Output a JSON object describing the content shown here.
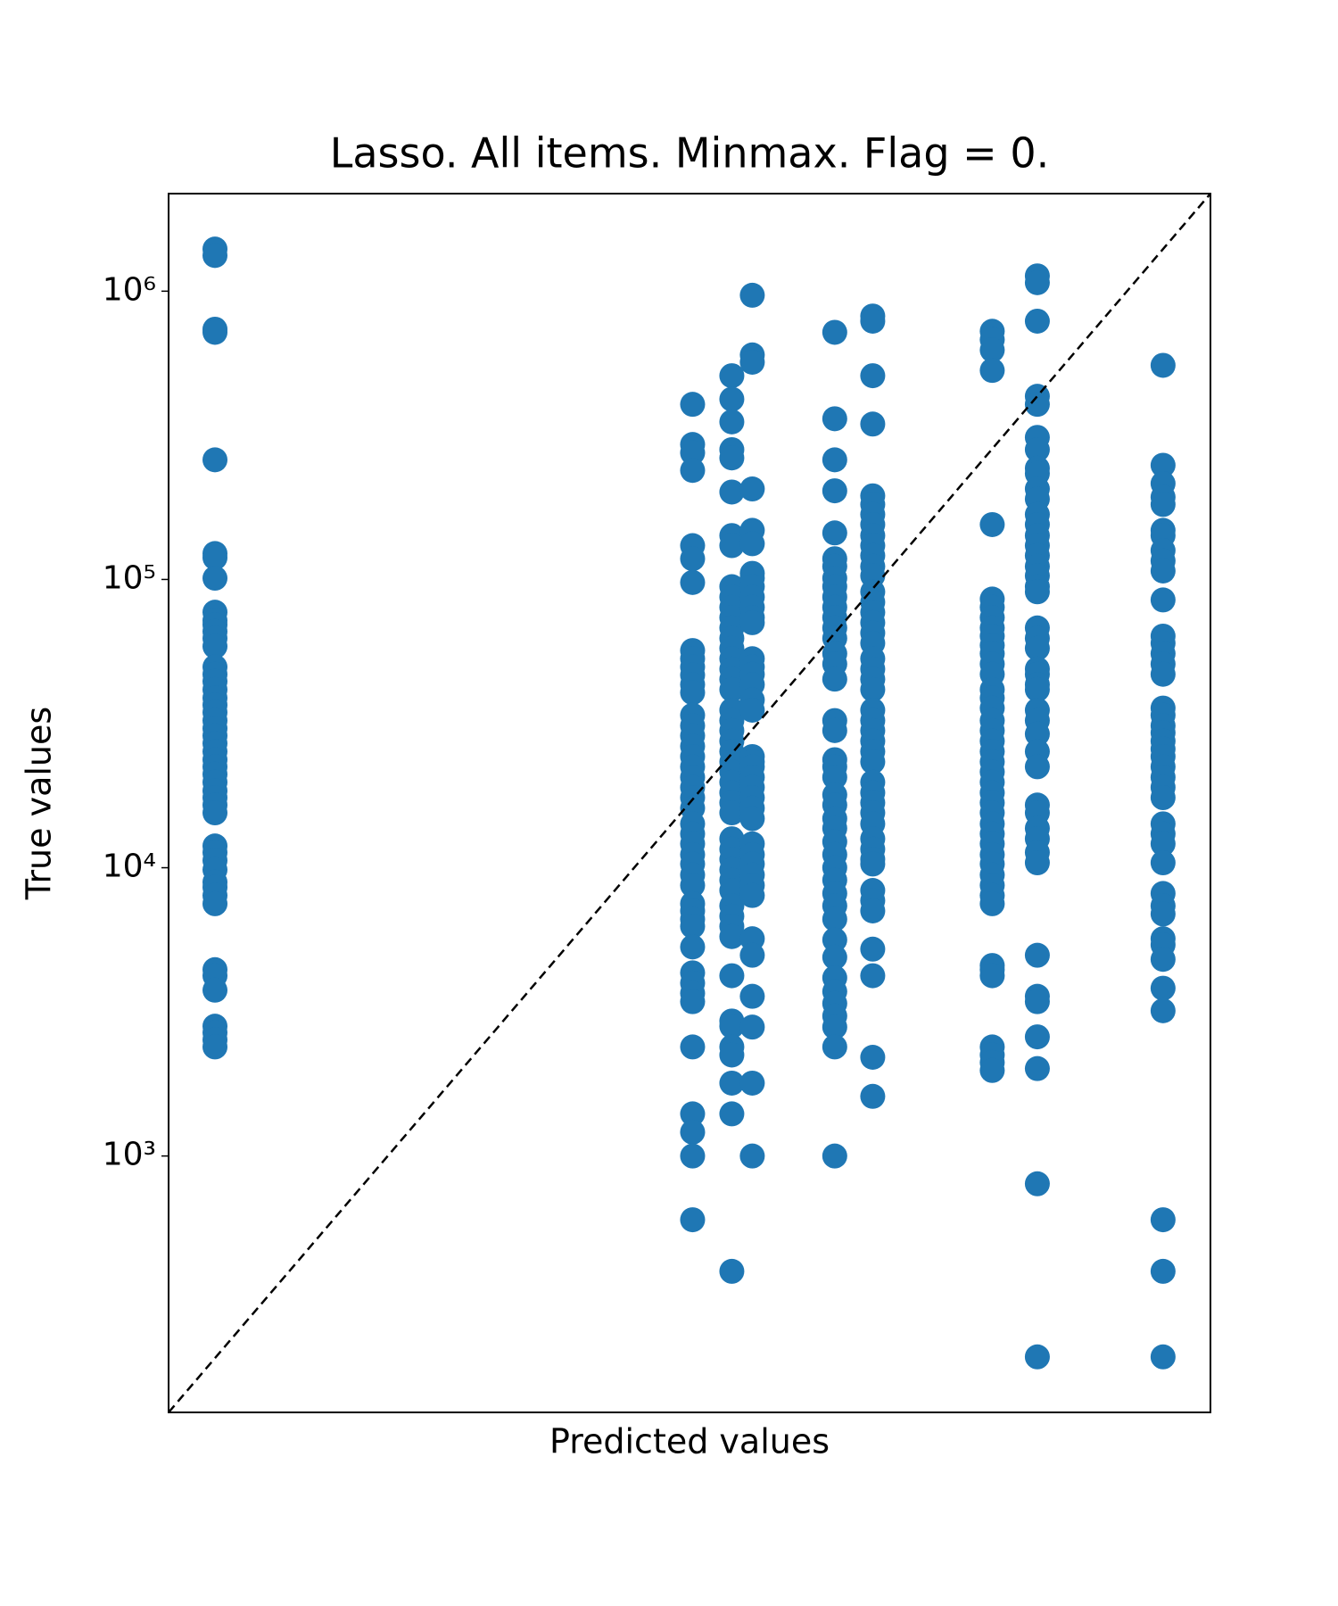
{
  "chart_data": {
    "type": "scatter",
    "title": "Lasso. All items. Minmax. Flag = 0.",
    "x_label": "Predicted values",
    "y_label": "True values",
    "color": "#1f77b4",
    "x_log": true,
    "y_log": true,
    "identity_line": true,
    "xlim": [
      129,
      2180000
    ],
    "ylim": [
      129,
      2180000
    ],
    "yticks": [
      {
        "value": 1000,
        "label": "10³"
      },
      {
        "value": 10000,
        "label": "10⁴"
      },
      {
        "value": 100000,
        "label": "10⁵"
      },
      {
        "value": 1000000,
        "label": "10⁶"
      }
    ],
    "x": [
      199,
      199,
      199,
      199,
      199,
      199,
      199,
      199,
      199,
      199,
      199,
      199,
      199,
      199,
      199,
      199,
      199,
      199,
      199,
      199,
      199,
      199,
      199,
      199,
      199,
      199,
      199,
      199,
      199,
      199,
      199,
      199,
      199,
      199,
      199,
      199,
      199,
      199,
      199,
      199,
      199,
      199,
      199,
      199,
      199,
      199,
      199,
      199,
      199,
      17260,
      17260,
      17260,
      17260,
      17260,
      17260,
      17260,
      17260,
      17260,
      17260,
      17260,
      17260,
      17260,
      17260,
      17260,
      17260,
      17260,
      17260,
      17260,
      17260,
      17260,
      17260,
      17260,
      17260,
      17260,
      17260,
      17260,
      17260,
      17260,
      17260,
      17260,
      17260,
      17260,
      17260,
      17260,
      17260,
      17260,
      17260,
      17260,
      17260,
      17260,
      17260,
      17260,
      17260,
      24900,
      24900,
      24900,
      24900,
      24900,
      24900,
      24900,
      24900,
      24900,
      24900,
      24900,
      24900,
      24900,
      24900,
      24900,
      24900,
      24900,
      24900,
      24900,
      24900,
      24900,
      24900,
      24900,
      24900,
      24900,
      24900,
      24900,
      24900,
      24900,
      24900,
      24900,
      24900,
      24900,
      24900,
      24900,
      24900,
      24900,
      24900,
      24900,
      24900,
      24900,
      24900,
      24900,
      24900,
      24900,
      24900,
      24900,
      24900,
      30150,
      30150,
      30150,
      30150,
      30150,
      30150,
      30150,
      30150,
      30150,
      30150,
      30150,
      30150,
      30150,
      30150,
      30150,
      30150,
      30150,
      30150,
      30150,
      30150,
      30150,
      30150,
      30150,
      30150,
      30150,
      30150,
      30150,
      30150,
      30150,
      30150,
      30150,
      30150,
      30150,
      30150,
      30150,
      30150,
      30150,
      30150,
      30150,
      65150,
      65150,
      65150,
      65150,
      65150,
      65150,
      65150,
      65150,
      65150,
      65150,
      65150,
      65150,
      65150,
      65150,
      65150,
      65150,
      65150,
      65150,
      65150,
      65150,
      65150,
      65150,
      65150,
      65150,
      65150,
      65150,
      65150,
      65150,
      65150,
      65150,
      65150,
      65150,
      65150,
      65150,
      65150,
      65150,
      65150,
      65150,
      65150,
      65150,
      65150,
      65150,
      92900,
      92900,
      92900,
      92900,
      92900,
      92900,
      92900,
      92900,
      92900,
      92900,
      92900,
      92900,
      92900,
      92900,
      92900,
      92900,
      92900,
      92900,
      92900,
      92900,
      92900,
      92900,
      92900,
      92900,
      92900,
      92900,
      92900,
      92900,
      92900,
      92900,
      92900,
      92900,
      92900,
      92900,
      92900,
      92900,
      92900,
      92900,
      92900,
      92900,
      92900,
      92900,
      92900,
      92900,
      92900,
      283800,
      283800,
      283800,
      283800,
      283800,
      283800,
      283800,
      283800,
      283800,
      283800,
      283800,
      283800,
      283800,
      283800,
      283800,
      283800,
      283800,
      283800,
      283800,
      283800,
      283800,
      283800,
      283800,
      283800,
      283800,
      283800,
      283800,
      283800,
      283800,
      283800,
      283800,
      283800,
      283800,
      283800,
      283800,
      283800,
      283800,
      283800,
      283800,
      283800,
      283800,
      283800,
      283800,
      432500,
      432500,
      432500,
      432500,
      432500,
      432500,
      432500,
      432500,
      432500,
      432500,
      432500,
      432500,
      432500,
      432500,
      432500,
      432500,
      432500,
      432500,
      432500,
      432500,
      432500,
      432500,
      432500,
      432500,
      432500,
      432500,
      432500,
      432500,
      432500,
      432500,
      432500,
      432500,
      432500,
      432500,
      432500,
      432500,
      432500,
      432500,
      432500,
      432500,
      432500,
      432500,
      432500,
      432500,
      432500,
      1400000,
      1400000,
      1400000,
      1400000,
      1400000,
      1400000,
      1400000,
      1400000,
      1400000,
      1400000,
      1400000,
      1400000,
      1400000,
      1400000,
      1400000,
      1400000,
      1400000,
      1400000,
      1400000,
      1400000,
      1400000,
      1400000,
      1400000,
      1400000,
      1400000,
      1400000,
      1400000,
      1400000,
      1400000,
      1400000,
      1400000,
      1400000,
      1400000,
      1400000,
      1400000,
      1400000,
      1400000,
      1400000,
      1400000,
      1400000,
      1400000,
      1400000
    ],
    "values": [
      1400000,
      1330000,
      738000,
      720000,
      260000,
      123000,
      119000,
      101000,
      77000,
      72000,
      69700,
      66000,
      62500,
      58600,
      49700,
      46900,
      44300,
      41500,
      38800,
      36700,
      34600,
      32400,
      30400,
      28700,
      27000,
      25300,
      23700,
      22400,
      21100,
      19800,
      18500,
      17500,
      16500,
      15500,
      11900,
      11300,
      10600,
      9840,
      8910,
      8550,
      8010,
      7500,
      4430,
      4220,
      3760,
      2820,
      2680,
      2530,
      2390,
      405000,
      294000,
      275000,
      239000,
      131000,
      118000,
      97600,
      56700,
      53100,
      49700,
      46600,
      43200,
      40500,
      33800,
      31100,
      28700,
      26400,
      24300,
      22400,
      20600,
      19000,
      17500,
      16100,
      14200,
      13100,
      12100,
      11100,
      10300,
      9440,
      8690,
      7500,
      7080,
      6630,
      6260,
      5310,
      4320,
      3980,
      3670,
      3430,
      2390,
      1400,
      1210,
      1000,
      601,
      509000,
      422000,
      352000,
      282000,
      264000,
      201000,
      142000,
      131000,
      94400,
      86900,
      80100,
      73800,
      67900,
      62500,
      57700,
      53100,
      48900,
      45100,
      41500,
      35200,
      32400,
      29900,
      27500,
      25300,
      23300,
      21500,
      19800,
      18200,
      16800,
      15500,
      12600,
      11600,
      10700,
      9840,
      9060,
      8340,
      7380,
      6790,
      6260,
      5770,
      4220,
      2940,
      2820,
      2390,
      2240,
      1790,
      1400,
      398,
      968000,
      601000,
      567000,
      206000,
      148000,
      133000,
      105000,
      101000,
      94400,
      86900,
      80100,
      73800,
      70800,
      53100,
      49700,
      46900,
      43200,
      38200,
      35200,
      24300,
      23300,
      22400,
      20600,
      19000,
      17500,
      16100,
      14800,
      12100,
      11100,
      10300,
      9440,
      8690,
      8010,
      5670,
      4970,
      3580,
      2800,
      1790,
      1000,
      720000,
      361000,
      260000,
      203000,
      145000,
      118000,
      111000,
      101000,
      94400,
      86900,
      80100,
      73800,
      67900,
      62500,
      55300,
      50900,
      45100,
      32400,
      29900,
      23700,
      22400,
      20600,
      17900,
      16500,
      14800,
      13700,
      12300,
      11100,
      10000,
      9060,
      8140,
      7380,
      6630,
      5620,
      4890,
      4150,
      3720,
      3380,
      3060,
      2800,
      2390,
      1000,
      820000,
      787000,
      509000,
      346000,
      195000,
      182000,
      168000,
      155000,
      142000,
      131000,
      121000,
      111000,
      103000,
      90600,
      83400,
      76900,
      70800,
      65200,
      60100,
      53100,
      48900,
      45100,
      41500,
      35200,
      32400,
      29900,
      27500,
      25300,
      23300,
      19800,
      18200,
      16800,
      15500,
      14200,
      12600,
      11600,
      10700,
      10300,
      8340,
      7690,
      7080,
      5220,
      4220,
      2200,
      1610,
      726000,
      679000,
      625000,
      531000,
      155000,
      85500,
      80100,
      73800,
      67900,
      63600,
      59100,
      55300,
      50900,
      46900,
      41500,
      38800,
      35800,
      32400,
      29900,
      27500,
      25300,
      23300,
      21500,
      19800,
      18200,
      16800,
      15500,
      14200,
      13100,
      12100,
      11100,
      10300,
      9440,
      8690,
      8010,
      7500,
      4580,
      4430,
      4220,
      2390,
      2240,
      2110,
      1980,
      1130000,
      1070000,
      787000,
      432000,
      405000,
      311000,
      282000,
      243000,
      233000,
      206000,
      190000,
      168000,
      155000,
      142000,
      131000,
      121000,
      111000,
      103000,
      94400,
      90600,
      67900,
      62500,
      57700,
      48900,
      46900,
      43200,
      41500,
      35200,
      32400,
      29100,
      25300,
      22400,
      16500,
      15500,
      13700,
      12600,
      11300,
      10400,
      4970,
      3580,
      3430,
      2590,
      2010,
      801,
      201,
      553000,
      249000,
      215000,
      193000,
      182000,
      148000,
      142000,
      126000,
      116000,
      107000,
      84900,
      63600,
      60100,
      55300,
      50900,
      46900,
      35800,
      33800,
      31100,
      29400,
      27500,
      25800,
      24300,
      22400,
      20600,
      19000,
      17500,
      14200,
      13100,
      12100,
      10400,
      8140,
      7380,
      6910,
      5670,
      5400,
      4810,
      3820,
      3190,
      601,
      398,
      201
    ]
  }
}
